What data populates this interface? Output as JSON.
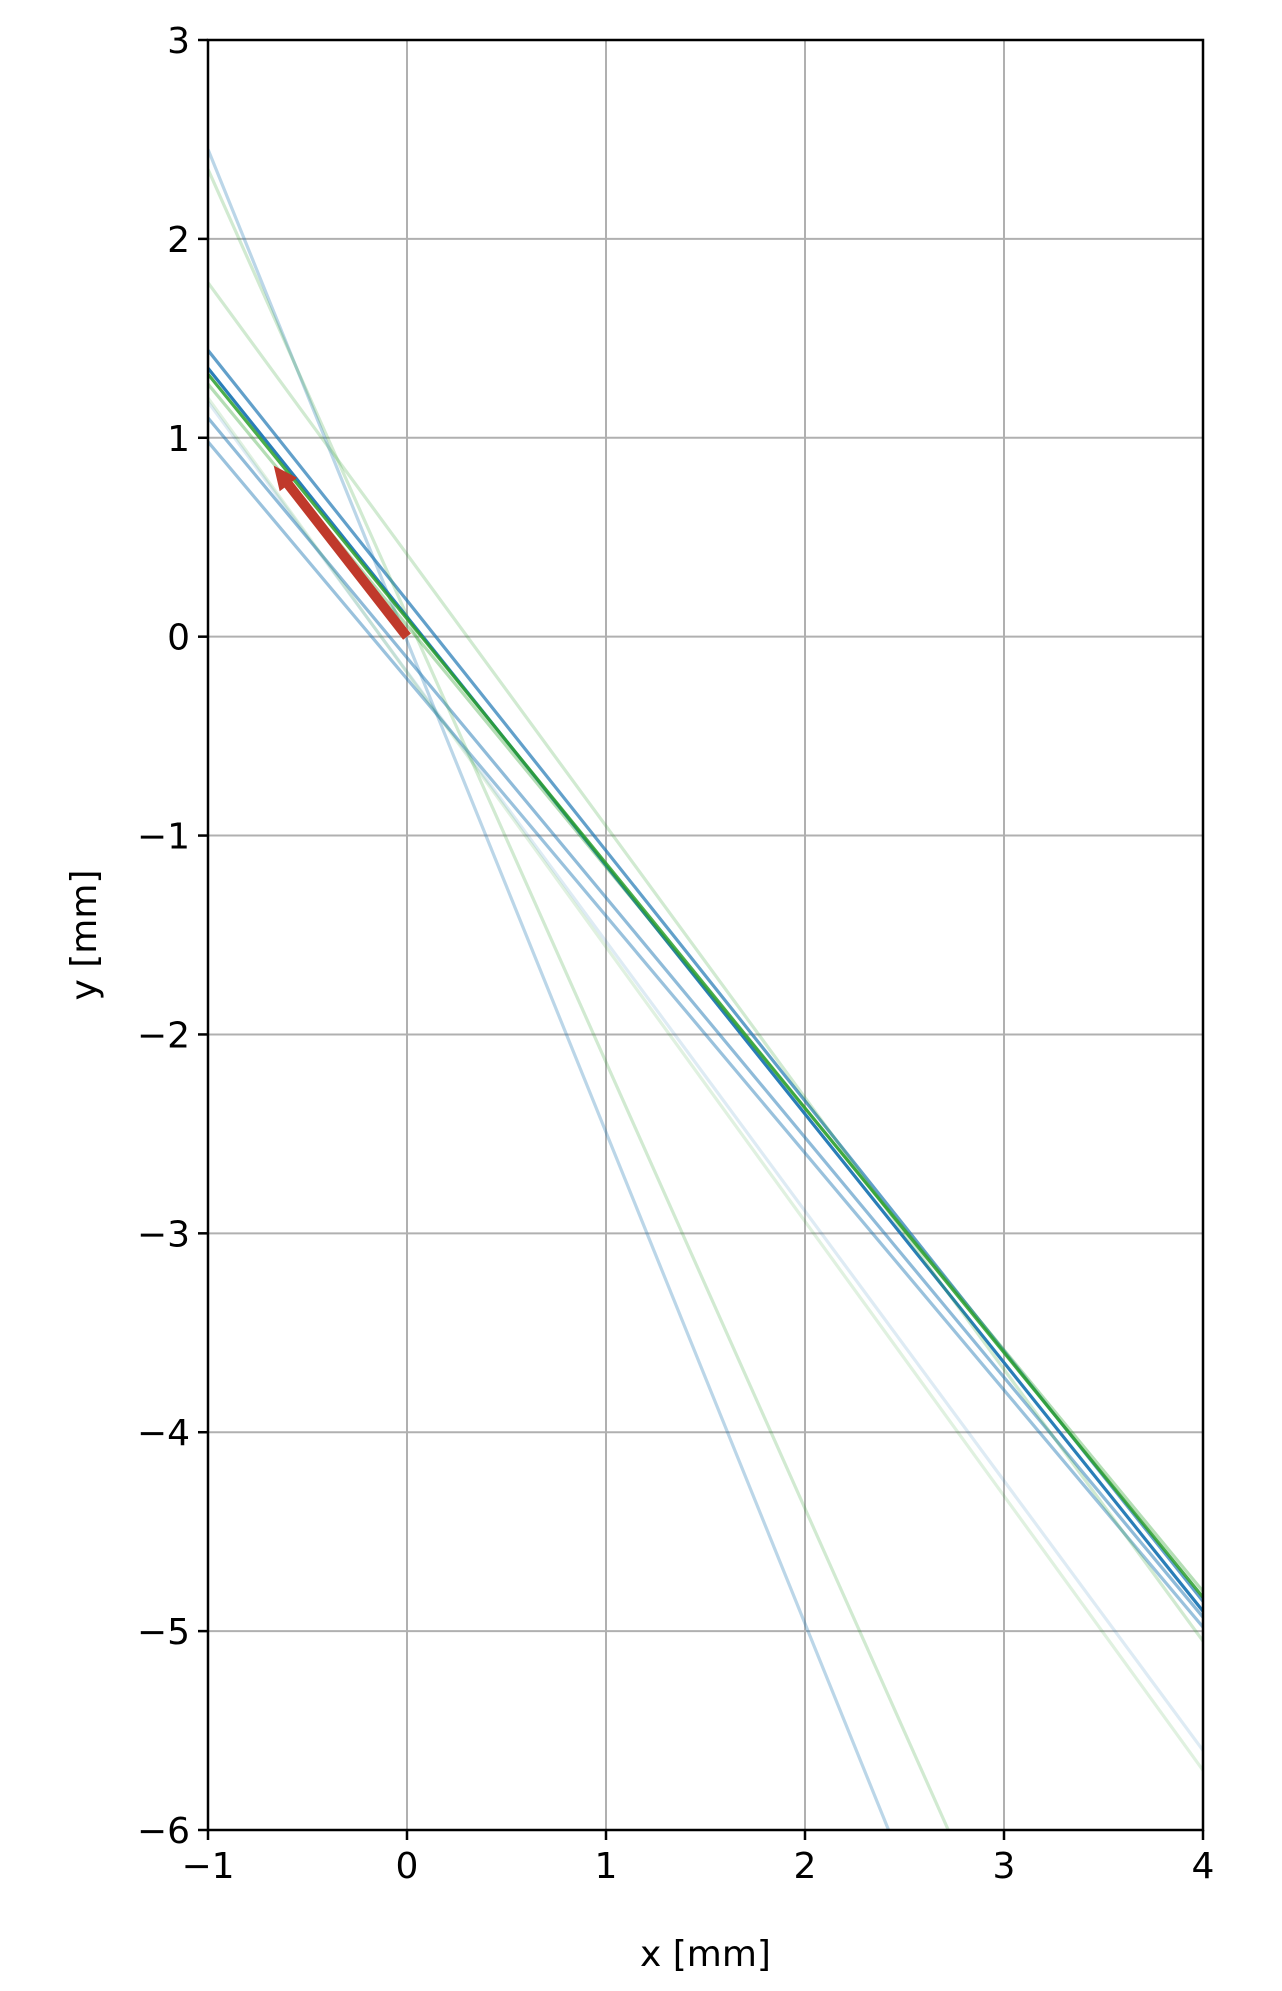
{
  "chart_data": {
    "type": "line",
    "title": "",
    "xlabel": "x [mm]",
    "ylabel": "y [mm]",
    "xlim": [
      -1,
      4
    ],
    "ylim": [
      -6,
      3
    ],
    "xticks": [
      -1,
      0,
      1,
      2,
      3,
      4
    ],
    "yticks": [
      -6,
      -5,
      -4,
      -3,
      -2,
      -1,
      0,
      1,
      2,
      3
    ],
    "xtick_labels": [
      "−1",
      "0",
      "1",
      "2",
      "3",
      "4"
    ],
    "ytick_labels": [
      "−6",
      "−5",
      "−4",
      "−3",
      "−2",
      "−1",
      "0",
      "1",
      "2",
      "3"
    ],
    "grid": true,
    "legend": "none",
    "series": [
      {
        "color": "#1f77b4",
        "opacity": 0.95,
        "points": [
          [
            -1,
            1.35
          ],
          [
            4,
            -4.9
          ]
        ]
      },
      {
        "color": "#1f77b4",
        "opacity": 0.7,
        "points": [
          [
            -1,
            1.44
          ],
          [
            4,
            -4.85
          ]
        ]
      },
      {
        "color": "#1f77b4",
        "opacity": 0.5,
        "points": [
          [
            -1,
            1.1
          ],
          [
            4,
            -4.93
          ]
        ]
      },
      {
        "color": "#1f77b4",
        "opacity": 0.45,
        "points": [
          [
            -1,
            0.98
          ],
          [
            4,
            -4.98
          ]
        ]
      },
      {
        "color": "#1f77b4",
        "opacity": 0.3,
        "points": [
          [
            -1,
            2.45
          ],
          [
            2.42,
            -6.0
          ]
        ]
      },
      {
        "color": "#1f77b4",
        "opacity": 0.15,
        "points": [
          [
            -1,
            1.18
          ],
          [
            4,
            -5.6
          ]
        ]
      },
      {
        "color": "#2ca02c",
        "opacity": 0.85,
        "points": [
          [
            -1,
            1.32
          ],
          [
            4,
            -4.83
          ]
        ]
      },
      {
        "color": "#2ca02c",
        "opacity": 0.35,
        "points": [
          [
            -1,
            1.27
          ],
          [
            4,
            -4.8
          ]
        ]
      },
      {
        "color": "#2ca02c",
        "opacity": 0.22,
        "points": [
          [
            -1,
            1.78
          ],
          [
            4,
            -5.05
          ]
        ]
      },
      {
        "color": "#2ca02c",
        "opacity": 0.22,
        "points": [
          [
            -1,
            2.35
          ],
          [
            2.72,
            -6.0
          ]
        ]
      },
      {
        "color": "#2ca02c",
        "opacity": 0.15,
        "points": [
          [
            -1,
            1.2
          ],
          [
            4,
            -5.7
          ]
        ]
      }
    ],
    "arrow": {
      "color": "#c0392b",
      "from": [
        0.0,
        0.0
      ],
      "to": [
        -0.67,
        0.86
      ]
    }
  }
}
